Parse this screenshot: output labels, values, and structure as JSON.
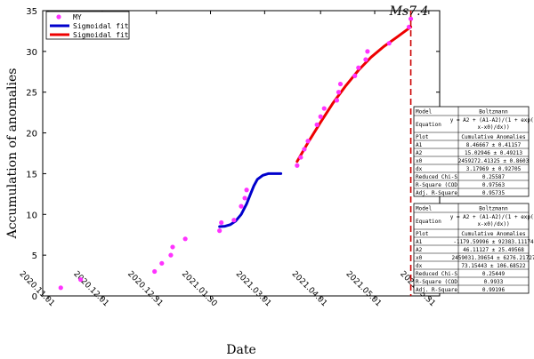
{
  "chart_data": {
    "type": "scatter",
    "xlabel": "Date",
    "ylabel": "Accumulation of anomalies",
    "x_ticks": [
      "2020.11.01",
      "2020.12.01",
      "2020.12.31",
      "2021.01.30",
      "2021.03.01",
      "2021.04.01",
      "2021.05.01",
      "2021.05.31"
    ],
    "xlim": [
      "2020-10-29",
      "2021-06-06"
    ],
    "ylim": [
      0,
      35
    ],
    "y_ticks": [
      0,
      5,
      10,
      15,
      20,
      25,
      30,
      35
    ],
    "legend": {
      "position": "top-left",
      "entries": [
        {
          "label": "MY",
          "color": "#ff33ff",
          "kind": "marker"
        },
        {
          "label": "Sigmoidal fit",
          "color": "#0000cc",
          "kind": "line"
        },
        {
          "label": "Sigmoidal fit",
          "color": "#ee0000",
          "kind": "line"
        }
      ]
    },
    "series": [
      {
        "name": "MY",
        "color": "#ff33ff",
        "points": [
          [
            "2020-11-08",
            1
          ],
          [
            "2020-11-19",
            2
          ],
          [
            "2020-12-30",
            3
          ],
          [
            "2021-01-03",
            4
          ],
          [
            "2021-01-08",
            5
          ],
          [
            "2021-01-09",
            6
          ],
          [
            "2021-01-16",
            7
          ],
          [
            "2021-02-04",
            8
          ],
          [
            "2021-02-05",
            9
          ],
          [
            "2021-02-12",
            9.3
          ],
          [
            "2021-02-16",
            11
          ],
          [
            "2021-02-18",
            12
          ],
          [
            "2021-02-19",
            13
          ],
          [
            "2021-03-19",
            16
          ],
          [
            "2021-03-21",
            17
          ],
          [
            "2021-03-23",
            18
          ],
          [
            "2021-03-25",
            19
          ],
          [
            "2021-03-30",
            21
          ],
          [
            "2021-04-01",
            22
          ],
          [
            "2021-04-03",
            23
          ],
          [
            "2021-04-10",
            24
          ],
          [
            "2021-04-11",
            25
          ],
          [
            "2021-04-12",
            26
          ],
          [
            "2021-04-20",
            27
          ],
          [
            "2021-04-22",
            28
          ],
          [
            "2021-04-26",
            29
          ],
          [
            "2021-04-27",
            30
          ],
          [
            "2021-05-09",
            31
          ],
          [
            "2021-05-20",
            33
          ],
          [
            "2021-05-21",
            34
          ]
        ]
      },
      {
        "name": "Sigmoidal fit",
        "color": "#0000cc",
        "points": [
          [
            "2021-02-04",
            8.5
          ],
          [
            "2021-02-07",
            8.55
          ],
          [
            "2021-02-10",
            8.75
          ],
          [
            "2021-02-13",
            9.2
          ],
          [
            "2021-02-16",
            10.0
          ],
          [
            "2021-02-19",
            11.3
          ],
          [
            "2021-02-21",
            12.4
          ],
          [
            "2021-02-23",
            13.5
          ],
          [
            "2021-02-25",
            14.3
          ],
          [
            "2021-02-28",
            14.8
          ],
          [
            "2021-03-03",
            15.0
          ],
          [
            "2021-03-10",
            15.0
          ]
        ]
      },
      {
        "name": "Sigmoidal fit",
        "color": "#ee0000",
        "points": [
          [
            "2021-03-19",
            16.5
          ],
          [
            "2021-03-25",
            18.8
          ],
          [
            "2021-04-01",
            21.3
          ],
          [
            "2021-04-08",
            23.7
          ],
          [
            "2021-04-15",
            25.8
          ],
          [
            "2021-04-22",
            27.7
          ],
          [
            "2021-04-29",
            29.3
          ],
          [
            "2021-05-06",
            30.6
          ],
          [
            "2021-05-13",
            31.7
          ],
          [
            "2021-05-21",
            33.0
          ]
        ]
      }
    ],
    "event": {
      "label": "Ms7.4",
      "x": "2021-05-21",
      "color": "#cc0000",
      "style": "dashed"
    },
    "fit_tables": [
      {
        "rows": [
          [
            "Model",
            "Boltzmann"
          ],
          [
            "Equation",
            "y = A2 + (A1-A2)/(1 + exp((x-x0)/dx))"
          ],
          [
            "Plot",
            "Cumulative Anomalies"
          ],
          [
            "A1",
            "8.46667 ± 0.41157"
          ],
          [
            "A2",
            "15.02946 ± 0.49213"
          ],
          [
            "x0",
            "2459272.41325 ± 0.8603"
          ],
          [
            "dx",
            "3.17969 ± 0.92705"
          ],
          [
            "Reduced Chi-S",
            "0.25587"
          ],
          [
            "R-Square (COD",
            "0.97563"
          ],
          [
            "Adj. R-Square",
            "0.95735"
          ]
        ]
      },
      {
        "rows": [
          [
            "Model",
            "Boltzmann"
          ],
          [
            "Equation",
            "y = A2 + (A1-A2)/(1 + exp((x-x0)/dx))"
          ],
          [
            "Plot",
            "Cumulative Anomalies"
          ],
          [
            "A1",
            "-1179.59996 ± 92383.11174"
          ],
          [
            "A2",
            "46.11127 ± 25.49568"
          ],
          [
            "x0",
            "2459031.39654 ± 6276.21727"
          ],
          [
            "dx",
            "73.15443 ± 106.68522"
          ],
          [
            "Reduced Chi-S",
            "0.25449"
          ],
          [
            "R-Square (COD",
            "0.9933"
          ],
          [
            "Adj. R-Square",
            "0.99196"
          ]
        ]
      }
    ]
  }
}
